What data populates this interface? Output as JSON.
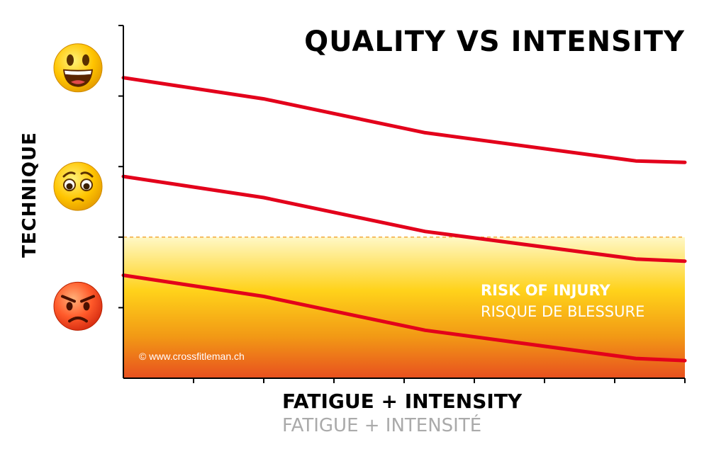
{
  "chart_data": {
    "type": "line",
    "title": "QUALITY VS INTENSITY",
    "ylabel": "TECHNIQUE",
    "xlabel": "FATIGUE + INTENSITY",
    "xlabel_fr": "FATIGUE + INTENSITÉ",
    "x": [
      0,
      2,
      4.3,
      7.3,
      8
    ],
    "xlim": [
      0,
      8
    ],
    "ylim": [
      0,
      5
    ],
    "x_ticks": [
      1,
      2,
      3,
      4,
      5,
      6,
      7,
      8
    ],
    "y_ticks": [
      1,
      2,
      3,
      4,
      5
    ],
    "grid": false,
    "series": [
      {
        "values": [
          4.26,
          3.96,
          3.48,
          3.08,
          3.06
        ]
      },
      {
        "values": [
          2.86,
          2.56,
          2.08,
          1.69,
          1.66
        ]
      },
      {
        "values": [
          1.46,
          1.16,
          0.68,
          0.28,
          0.25
        ]
      }
    ],
    "series_color": "#e3001b",
    "risk_zone": {
      "threshold": 2.0,
      "label": "RISK OF INJURY",
      "label_fr": "RISQUE DE BLESSURE",
      "colors": [
        "#fff8c6",
        "#ffd21a",
        "#f29a15",
        "#e8501f"
      ],
      "threshold_color": "#f2a93b"
    },
    "emoji_levels": [
      {
        "icon": "happy-face-icon",
        "level": 4.4
      },
      {
        "icon": "worried-face-icon",
        "level": 2.72
      },
      {
        "icon": "angry-face-icon",
        "level": 1.02
      }
    ],
    "credit": "© www.crossfitleman.ch"
  }
}
